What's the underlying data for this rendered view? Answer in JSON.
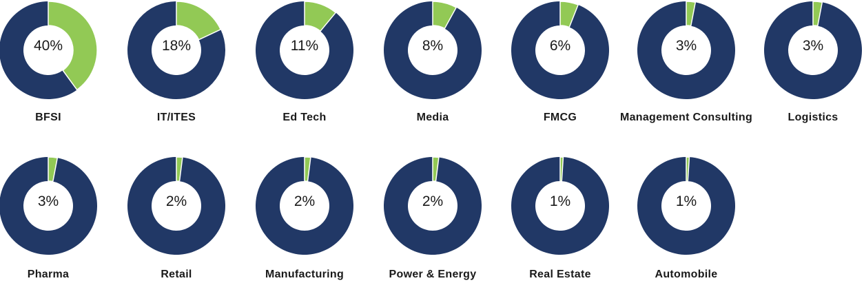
{
  "chart_data": {
    "type": "pie",
    "variant": "donut",
    "colors": {
      "highlight": "#92c955",
      "remainder": "#213866",
      "separator": "#ffffff"
    },
    "items": [
      {
        "name": "BFSI",
        "value": 40,
        "label": "40%"
      },
      {
        "name": "IT/ITES",
        "value": 18,
        "label": "18%"
      },
      {
        "name": "Ed Tech",
        "value": 11,
        "label": "11%"
      },
      {
        "name": "Media",
        "value": 8,
        "label": "8%"
      },
      {
        "name": "FMCG",
        "value": 6,
        "label": "6%"
      },
      {
        "name": "Management Consulting",
        "value": 3,
        "label": "3%"
      },
      {
        "name": "Logistics",
        "value": 3,
        "label": "3%"
      },
      {
        "name": "Pharma",
        "value": 3,
        "label": "3%"
      },
      {
        "name": "Retail",
        "value": 2,
        "label": "2%"
      },
      {
        "name": "Manufacturing",
        "value": 2,
        "label": "2%"
      },
      {
        "name": "Power & Energy",
        "value": 2,
        "label": "2%"
      },
      {
        "name": "Real Estate",
        "value": 1,
        "label": "1%"
      },
      {
        "name": "Automobile",
        "value": 1,
        "label": "1%"
      }
    ]
  }
}
